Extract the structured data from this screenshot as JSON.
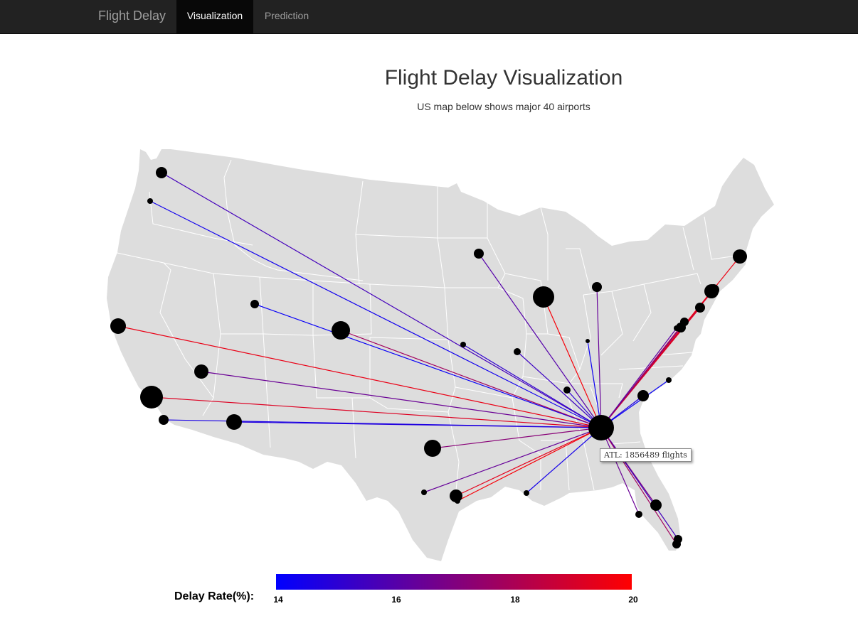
{
  "navbar": {
    "brand": "Flight Delay",
    "items": [
      {
        "label": "Visualization",
        "active": true
      },
      {
        "label": "Prediction",
        "active": false
      }
    ]
  },
  "header": {
    "title": "Flight Delay Visualization",
    "subtitle": "US map below shows major 40 airports"
  },
  "tooltip": {
    "text": "ATL: 1856489 flights"
  },
  "legend": {
    "label": "Delay Rate(%):",
    "min": 14,
    "max": 20,
    "ticks": [
      "14",
      "16",
      "18",
      "20"
    ],
    "colors": {
      "low": "#0000ff",
      "high": "#ff0000"
    }
  },
  "colors": {
    "land": "#dddddd",
    "borders": "#ffffff",
    "airport": "#000000",
    "navbar": "#222222"
  }
}
